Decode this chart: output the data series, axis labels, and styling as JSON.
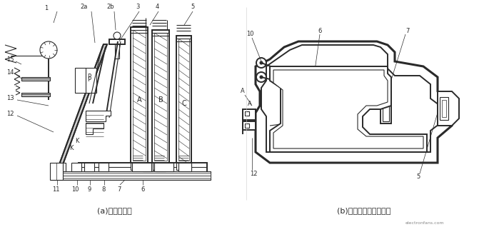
{
  "bg_color": "#ffffff",
  "line_color": "#2a2a2a",
  "label_color": "#1a1a1a",
  "caption_a": "(a)结构示意图",
  "caption_b": "(b)差动式断相保护意图",
  "watermark": "electronfans.com",
  "fig_width": 6.92,
  "fig_height": 3.39,
  "dpi": 100
}
